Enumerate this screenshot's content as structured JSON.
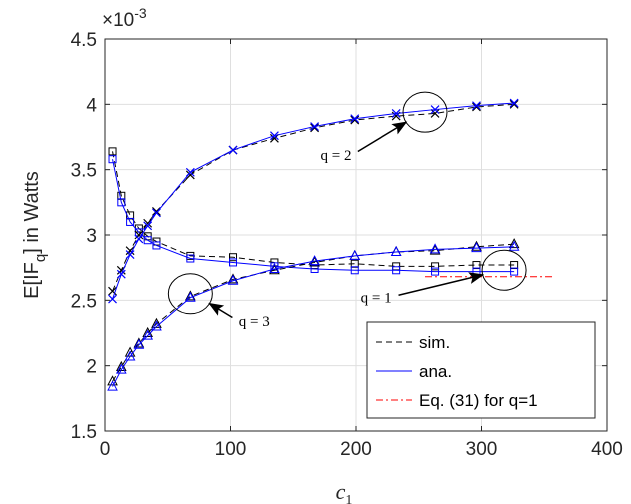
{
  "chart_data": {
    "type": "line",
    "xlabel": "c",
    "xlabel_sub": "1",
    "ylabel": "E[IF_q] in Watts",
    "ylabel_parts": {
      "main": "E[IF",
      "sub": "q",
      "end": "] in Watts"
    },
    "exponent_label": "×10",
    "exponent_power": "-3",
    "xlim": [
      0,
      400
    ],
    "ylim": [
      1.5,
      4.5
    ],
    "x_ticks": [
      0,
      100,
      200,
      300,
      400
    ],
    "y_ticks": [
      1.5,
      2,
      2.5,
      3,
      3.5,
      4,
      4.5
    ],
    "x_tick_labels": [
      "0",
      "100",
      "200",
      "300",
      "400"
    ],
    "y_tick_labels": [
      "1.5",
      "2",
      "2.5",
      "3",
      "3.5",
      "4",
      "4.5"
    ],
    "grid": true,
    "legend_position": "bottom-right",
    "legend": [
      {
        "label": "sim.",
        "style": "dashed",
        "color": "#000000"
      },
      {
        "label": "ana.",
        "style": "solid",
        "color": "#0000ff"
      },
      {
        "label": "Eq. (31) for q=1",
        "style": "dashdot",
        "color": "#ff0000"
      }
    ],
    "series": [
      {
        "q": 1,
        "kind": "sim",
        "marker": "square",
        "color": "#000000",
        "x": [
          6,
          13,
          20,
          27,
          34,
          41,
          68,
          102,
          135,
          167,
          199,
          232,
          263,
          296,
          326
        ],
        "y": [
          3.64,
          3.3,
          3.15,
          3.05,
          2.99,
          2.95,
          2.84,
          2.83,
          2.79,
          2.77,
          2.78,
          2.76,
          2.76,
          2.77,
          2.77
        ]
      },
      {
        "q": 1,
        "kind": "ana",
        "marker": "square",
        "color": "#0000ff",
        "x": [
          6,
          13,
          20,
          27,
          34,
          41,
          68,
          102,
          135,
          167,
          199,
          232,
          263,
          296,
          326
        ],
        "y": [
          3.58,
          3.25,
          3.1,
          3.02,
          2.96,
          2.92,
          2.82,
          2.79,
          2.76,
          2.74,
          2.73,
          2.73,
          2.72,
          2.72,
          2.72
        ]
      },
      {
        "q": 2,
        "kind": "sim",
        "marker": "x",
        "color": "#000000",
        "x": [
          6,
          13,
          20,
          27,
          34,
          41,
          68,
          102,
          135,
          167,
          199,
          232,
          263,
          296,
          326
        ],
        "y": [
          2.57,
          2.73,
          2.88,
          3.0,
          3.09,
          3.18,
          3.46,
          3.65,
          3.74,
          3.82,
          3.88,
          3.91,
          3.93,
          3.98,
          4.0
        ]
      },
      {
        "q": 2,
        "kind": "ana",
        "marker": "x",
        "color": "#0000ff",
        "x": [
          6,
          13,
          20,
          27,
          34,
          41,
          68,
          102,
          135,
          167,
          199,
          232,
          263,
          296,
          326
        ],
        "y": [
          2.51,
          2.7,
          2.85,
          2.97,
          3.07,
          3.17,
          3.48,
          3.65,
          3.76,
          3.83,
          3.89,
          3.93,
          3.96,
          3.99,
          4.01
        ]
      },
      {
        "q": 3,
        "kind": "sim",
        "marker": "triangle",
        "color": "#000000",
        "x": [
          6,
          13,
          20,
          27,
          34,
          41,
          68,
          102,
          135,
          167,
          199,
          232,
          263,
          296,
          326
        ],
        "y": [
          1.88,
          1.99,
          2.1,
          2.17,
          2.25,
          2.32,
          2.53,
          2.66,
          2.73,
          2.79,
          2.84,
          2.87,
          2.88,
          2.91,
          2.93
        ]
      },
      {
        "q": 3,
        "kind": "ana",
        "marker": "triangle",
        "color": "#0000ff",
        "x": [
          6,
          13,
          20,
          27,
          34,
          41,
          68,
          102,
          135,
          167,
          199,
          232,
          263,
          296,
          326
        ],
        "y": [
          1.84,
          1.97,
          2.07,
          2.16,
          2.23,
          2.3,
          2.52,
          2.65,
          2.74,
          2.8,
          2.84,
          2.87,
          2.89,
          2.9,
          2.91
        ]
      },
      {
        "q": 1,
        "kind": "eq31",
        "marker": "none",
        "color": "#ff0000",
        "x": [
          255,
          358
        ],
        "y": [
          2.68,
          2.68
        ]
      }
    ],
    "annotations": [
      {
        "text": "q = 2",
        "circle": [
          255,
          3.94
        ],
        "arrow_from": [
          198,
          3.62
        ]
      },
      {
        "text": "q = 1",
        "circle": [
          318,
          2.73
        ],
        "arrow_from": [
          230,
          2.53
        ]
      },
      {
        "text": "q = 3",
        "circle": [
          68,
          2.55
        ],
        "arrow_from": [
          105,
          2.35
        ]
      }
    ]
  }
}
